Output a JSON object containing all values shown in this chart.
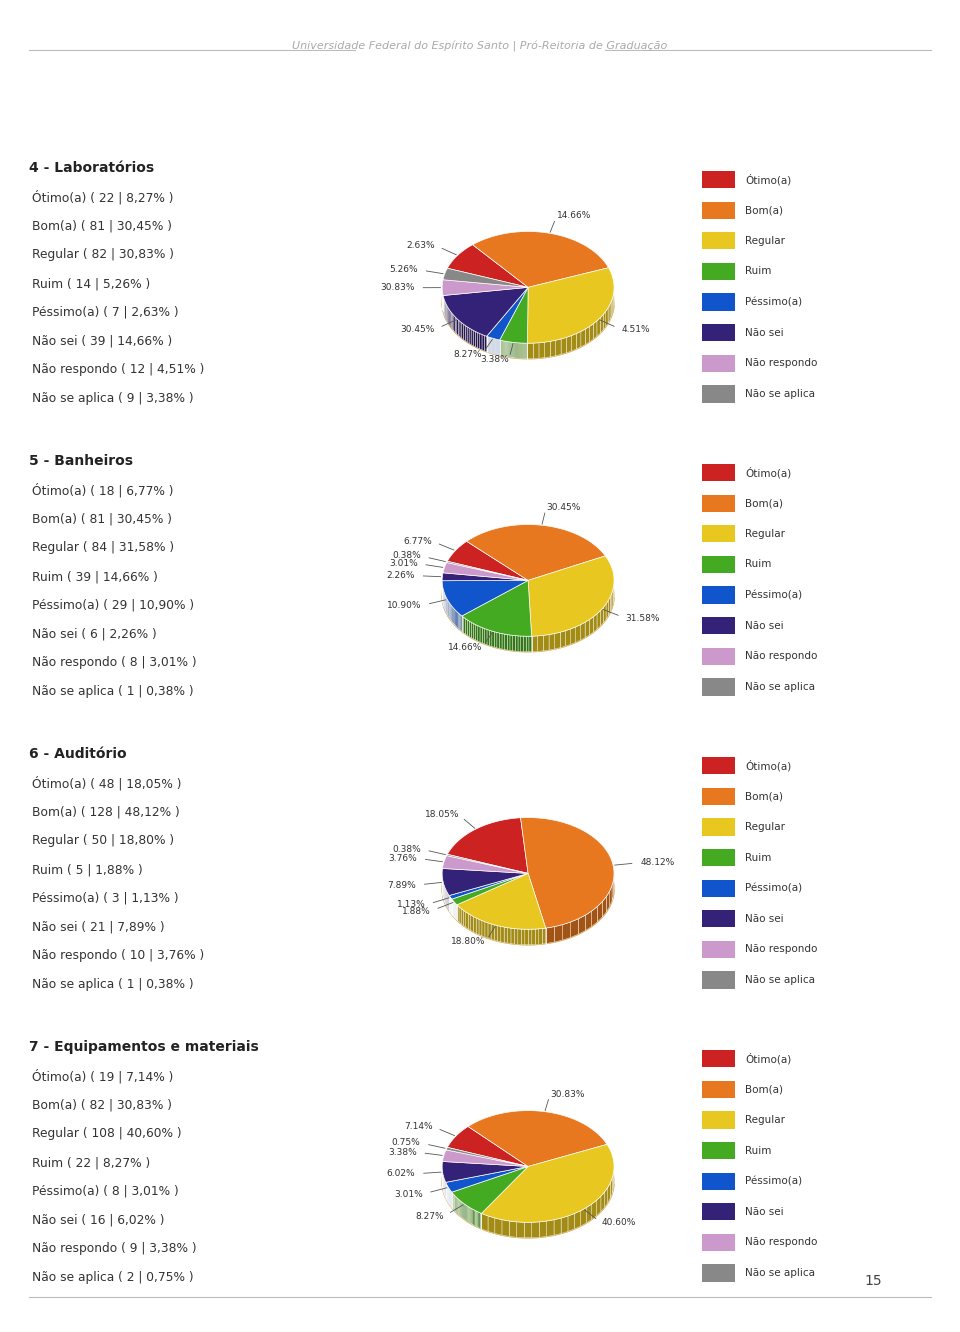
{
  "page_header": "Universidade Federal do Espírito Santo | Pró-Reitoria de Graduação",
  "page_number": "15",
  "background_color": "#ffffff",
  "chart_bg_color": "#e8e8e8",
  "slice_colors": [
    "#cc2222",
    "#e87820",
    "#e8c820",
    "#44aa22",
    "#1155cc",
    "#332277",
    "#cc99cc",
    "#888888"
  ],
  "legend_labels": [
    "Ótimo(a)",
    "Bom(a)",
    "Regular",
    "Ruim",
    "Péssimo(a)",
    "Não sei",
    "Não respondo",
    "Não se aplica"
  ],
  "charts": [
    {
      "title": "4 - Laboratórios",
      "items": [
        {
          "label": "Ótimo(a)",
          "count": 22,
          "pct": "8,27%"
        },
        {
          "label": "Bom(a)",
          "count": 81,
          "pct": "30,45%"
        },
        {
          "label": "Regular",
          "count": 82,
          "pct": "30,83%"
        },
        {
          "label": "Ruim",
          "count": 14,
          "pct": "5,26%"
        },
        {
          "label": "Péssimo(a)",
          "count": 7,
          "pct": "2,63%"
        },
        {
          "label": "Não sei",
          "count": 39,
          "pct": "14,66%"
        },
        {
          "label": "Não respondo",
          "count": 12,
          "pct": "4,51%"
        },
        {
          "label": "Não se aplica",
          "count": 9,
          "pct": "3,38%"
        }
      ],
      "values": [
        8.27,
        30.45,
        30.83,
        5.26,
        2.63,
        14.66,
        4.51,
        3.38
      ],
      "label_pcts": [
        "2.63%",
        "14.66%",
        "4.51%",
        "3.38%",
        "8.27%",
        "30.45%",
        "30.83%",
        "5.26%"
      ]
    },
    {
      "title": "5 - Banheiros",
      "items": [
        {
          "label": "Ótimo(a)",
          "count": 18,
          "pct": "6,77%"
        },
        {
          "label": "Bom(a)",
          "count": 81,
          "pct": "30,45%"
        },
        {
          "label": "Regular",
          "count": 84,
          "pct": "31,58%"
        },
        {
          "label": "Ruim",
          "count": 39,
          "pct": "14,66%"
        },
        {
          "label": "Péssimo(a)",
          "count": 29,
          "pct": "10,90%"
        },
        {
          "label": "Não sei",
          "count": 6,
          "pct": "2,26%"
        },
        {
          "label": "Não respondo",
          "count": 8,
          "pct": "3,01%"
        },
        {
          "label": "Não se aplica",
          "count": 1,
          "pct": "0,38%"
        }
      ],
      "values": [
        6.77,
        30.45,
        31.58,
        14.66,
        10.9,
        2.26,
        3.01,
        0.38
      ],
      "label_pcts": [
        "6.77%",
        "30.45%",
        "31.58%",
        "14.66%",
        "10.90%",
        "2.26%",
        "3.01%",
        "0.38%"
      ]
    },
    {
      "title": "6 - Auditório",
      "items": [
        {
          "label": "Ótimo(a)",
          "count": 48,
          "pct": "18,05%"
        },
        {
          "label": "Bom(a)",
          "count": 128,
          "pct": "48,12%"
        },
        {
          "label": "Regular",
          "count": 50,
          "pct": "18,80%"
        },
        {
          "label": "Ruim",
          "count": 5,
          "pct": "1,88%"
        },
        {
          "label": "Péssimo(a)",
          "count": 3,
          "pct": "1,13%"
        },
        {
          "label": "Não sei",
          "count": 21,
          "pct": "7,89%"
        },
        {
          "label": "Não respondo",
          "count": 10,
          "pct": "3,76%"
        },
        {
          "label": "Não se aplica",
          "count": 1,
          "pct": "0,38%"
        }
      ],
      "values": [
        18.05,
        48.12,
        18.8,
        1.88,
        1.13,
        7.89,
        3.76,
        0.38
      ],
      "label_pcts": [
        "18.05%",
        "48.12%",
        "18.80%",
        "1.88%",
        "1.13%",
        "7.89%",
        "3.76%",
        "0.38%"
      ]
    },
    {
      "title": "7 - Equipamentos e materiais",
      "items": [
        {
          "label": "Ótimo(a)",
          "count": 19,
          "pct": "7,14%"
        },
        {
          "label": "Bom(a)",
          "count": 82,
          "pct": "30,83%"
        },
        {
          "label": "Regular",
          "count": 108,
          "pct": "40,60%"
        },
        {
          "label": "Ruim",
          "count": 22,
          "pct": "8,27%"
        },
        {
          "label": "Péssimo(a)",
          "count": 8,
          "pct": "3,01%"
        },
        {
          "label": "Não sei",
          "count": 16,
          "pct": "6,02%"
        },
        {
          "label": "Não respondo",
          "count": 9,
          "pct": "3,38%"
        },
        {
          "label": "Não se aplica",
          "count": 2,
          "pct": "0,75%"
        }
      ],
      "values": [
        7.14,
        30.83,
        40.6,
        8.27,
        3.01,
        6.02,
        3.38,
        0.75
      ],
      "label_pcts": [
        "7.14%",
        "30.83%",
        "40.60%",
        "8.27%",
        "3.01%",
        "6.02%",
        "3.38%",
        "0.75%"
      ]
    }
  ]
}
